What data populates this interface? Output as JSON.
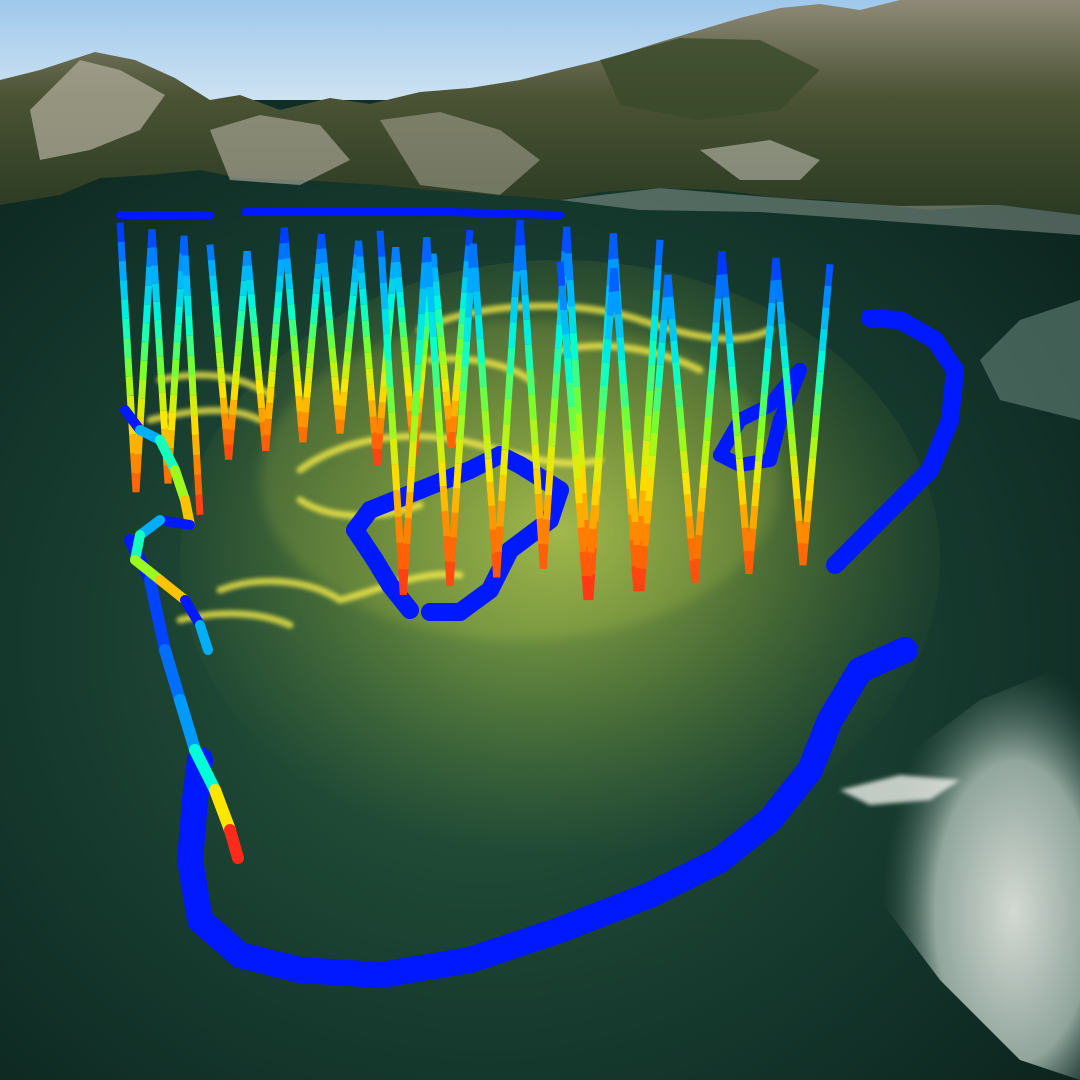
{
  "scene": {
    "kind": "3D underwater vehicle track over terrain with volumetric plume",
    "colors": {
      "sky_top": "#9fc8ec",
      "sky_bottom": "#cfe3f2",
      "water_deep": "#0c2a22",
      "water_mid": "#1f4a3a",
      "shore_light": "#d6dbd4",
      "mountain_dark": "#2f3a26",
      "mountain_light": "#a9a595",
      "plume": "#ffe94a",
      "track_low": "#0019ff",
      "track_high": "#ff3c1e"
    },
    "colormap": [
      "#0019ff",
      "#00a8ff",
      "#00ffd8",
      "#7dff2a",
      "#ffe600",
      "#ff7a00",
      "#ff2a1a"
    ]
  }
}
